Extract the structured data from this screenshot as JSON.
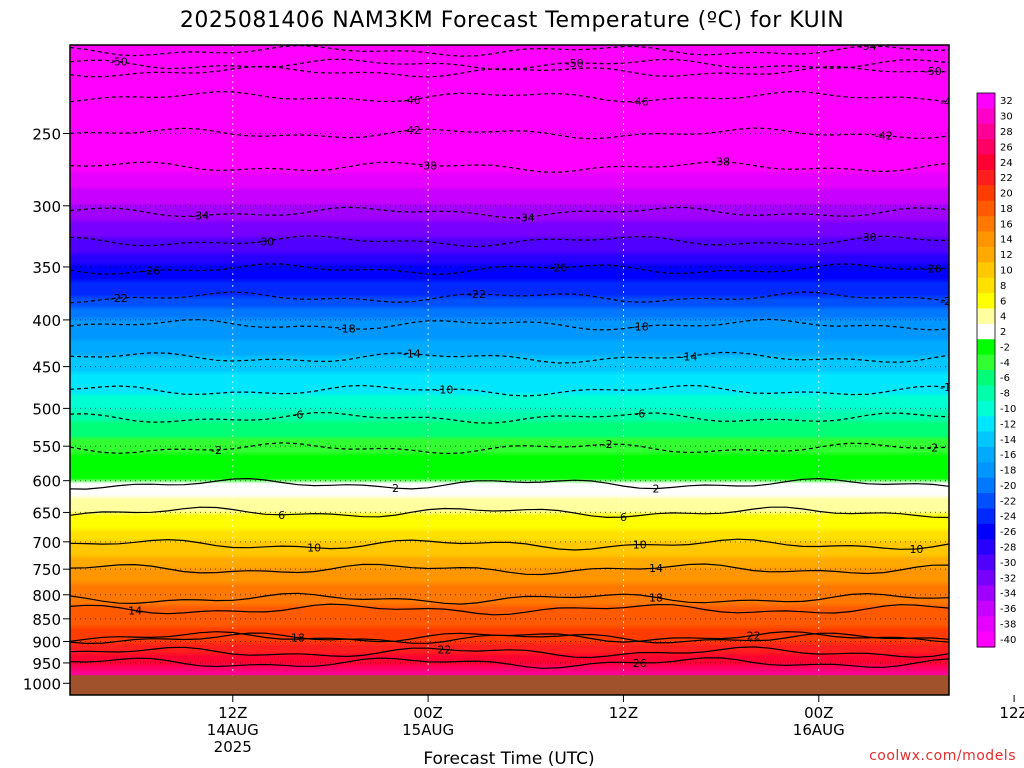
{
  "chart_data": {
    "type": "heatmap",
    "title": "2025081406 NAM3KM Forecast Temperature (ºC) for KUIN",
    "xlabel": "Forecast Time (UTC)",
    "ylabel": "",
    "y_scale": "log-pressure (hPa), inverted",
    "ylim": [
      1030,
      200
    ],
    "y_ticks": [
      250,
      300,
      350,
      400,
      450,
      500,
      550,
      600,
      650,
      700,
      750,
      800,
      850,
      900,
      950,
      1000
    ],
    "xlim_hours": [
      -4,
      50
    ],
    "x_ticks": [
      {
        "hour": 6,
        "lines": [
          "12Z",
          "14AUG",
          "2025"
        ]
      },
      {
        "hour": 18,
        "lines": [
          "00Z",
          "15AUG"
        ]
      },
      {
        "hour": 30,
        "lines": [
          "12Z"
        ]
      },
      {
        "hour": 42,
        "lines": [
          "00Z",
          "16AUG"
        ]
      },
      {
        "hour": 54,
        "lines": [
          "12Z"
        ]
      }
    ],
    "colorbar": {
      "labels": [
        "32",
        "30",
        "28",
        "26",
        "24",
        "22",
        "20",
        "18",
        "16",
        "14",
        "12",
        "10",
        "8",
        "6",
        "4",
        "2",
        "-2",
        "-4",
        "-6",
        "-8",
        "-10",
        "-12",
        "-14",
        "-16",
        "-18",
        "-20",
        "-22",
        "-24",
        "-26",
        "-28",
        "-30",
        "-32",
        "-34",
        "-36",
        "-38",
        "-40"
      ],
      "colors": [
        "#ff00ff",
        "#ff00c8",
        "#ff0096",
        "#ff0064",
        "#ff0032",
        "#ff1e1e",
        "#ff3c00",
        "#ff5a00",
        "#ff7800",
        "#ff9600",
        "#ffaa00",
        "#ffc800",
        "#ffe100",
        "#ffff00",
        "#ffffa0",
        "#ffffff",
        "#00ff00",
        "#32ff32",
        "#00ff78",
        "#00ffaa",
        "#00ffd2",
        "#00e6ff",
        "#00c8ff",
        "#00aaff",
        "#0096ff",
        "#0078ff",
        "#0050ff",
        "#0028ff",
        "#0000ff",
        "#2800ff",
        "#5000ff",
        "#7800ff",
        "#a000ff",
        "#c800ff",
        "#e600ff",
        "#ff00ff"
      ]
    },
    "surface_color": "#a0522d",
    "surface_pressure": 980,
    "contours": [
      {
        "value": -50,
        "pressure": 210,
        "label_hours": [
          -1,
          27
        ]
      },
      {
        "value": -54,
        "pressure": 203,
        "label_hours": [
          45
        ]
      },
      {
        "value": -50,
        "pressure": 214,
        "label_hours": [
          49
        ]
      },
      {
        "value": -46,
        "pressure": 228,
        "label_hours": [
          17,
          31,
          50
        ]
      },
      {
        "value": -42,
        "pressure": 250,
        "label_hours": [
          17,
          46
        ]
      },
      {
        "value": -38,
        "pressure": 272,
        "label_hours": [
          18,
          36
        ]
      },
      {
        "value": -34,
        "pressure": 305,
        "label_hours": [
          4,
          24,
          51
        ]
      },
      {
        "value": -30,
        "pressure": 328,
        "label_hours": [
          8,
          45
        ]
      },
      {
        "value": -26,
        "pressure": 352,
        "label_hours": [
          1,
          26,
          49
        ]
      },
      {
        "value": -22,
        "pressure": 378,
        "label_hours": [
          -1,
          21,
          50
        ]
      },
      {
        "value": -18,
        "pressure": 405,
        "label_hours": [
          13,
          31,
          53
        ]
      },
      {
        "value": -14,
        "pressure": 440,
        "label_hours": [
          17,
          34,
          53
        ]
      },
      {
        "value": -10,
        "pressure": 478,
        "label_hours": [
          19,
          50
        ]
      },
      {
        "value": -6,
        "pressure": 512,
        "label_hours": [
          10,
          31,
          54
        ]
      },
      {
        "value": -2,
        "pressure": 553,
        "label_hours": [
          5,
          29,
          49
        ]
      },
      {
        "value": 2,
        "pressure": 605,
        "label_hours": [
          16,
          32,
          54
        ]
      },
      {
        "value": 6,
        "pressure": 650,
        "label_hours": [
          9,
          30,
          51
        ]
      },
      {
        "value": 10,
        "pressure": 705,
        "label_hours": [
          11,
          31,
          48
        ]
      },
      {
        "value": 14,
        "pressure": 750,
        "label_hours": [
          32,
          53
        ]
      },
      {
        "value": 14,
        "pressure": 830,
        "label_hours": [
          0
        ]
      },
      {
        "value": 18,
        "pressure": 808,
        "label_hours": [
          32,
          55
        ]
      },
      {
        "value": 18,
        "pressure": 893,
        "label_hours": [
          10
        ]
      },
      {
        "value": 22,
        "pressure": 890,
        "label_hours": [
          38,
          51
        ]
      },
      {
        "value": 22,
        "pressure": 925,
        "label_hours": [
          19
        ]
      },
      {
        "value": 26,
        "pressure": 950,
        "label_hours": [
          31,
          53
        ]
      }
    ]
  },
  "credit": "coolwx.com/models"
}
